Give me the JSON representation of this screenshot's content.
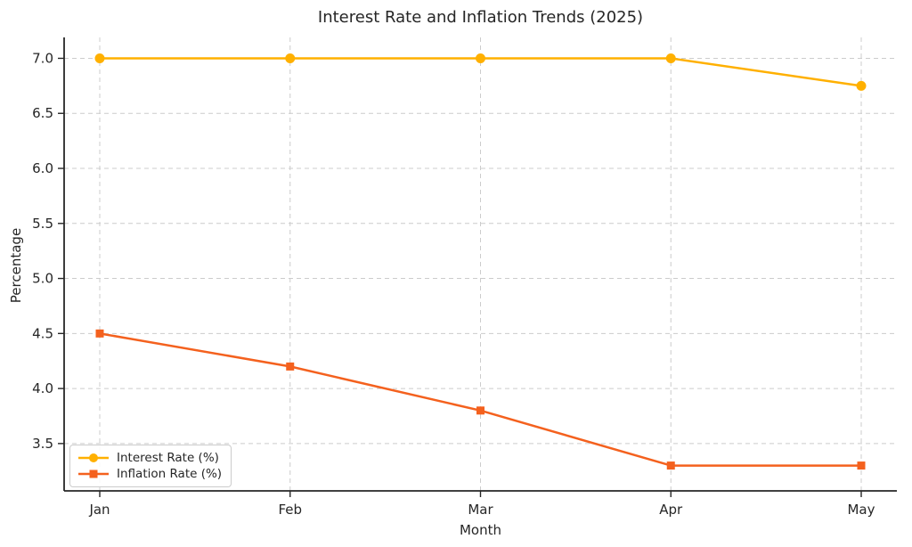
{
  "chart_data": {
    "type": "line",
    "title": "Interest Rate and Inflation Trends (2025)",
    "xlabel": "Month",
    "ylabel": "Percentage",
    "categories": [
      "Jan",
      "Feb",
      "Mar",
      "Apr",
      "May"
    ],
    "series": [
      {
        "name": "Interest Rate (%)",
        "color": "#FFB000",
        "marker": "circle",
        "values": [
          7.0,
          7.0,
          7.0,
          7.0,
          6.75
        ]
      },
      {
        "name": "Inflation Rate (%)",
        "color": "#F4611E",
        "marker": "square",
        "values": [
          4.5,
          4.2,
          3.8,
          3.3,
          3.3
        ]
      }
    ],
    "yticks": [
      3.5,
      4.0,
      4.5,
      5.0,
      5.5,
      6.0,
      6.5,
      7.0
    ],
    "ylim": [
      3.07,
      7.19
    ],
    "grid": true,
    "grid_style": "dashed",
    "legend_position": "lower-left",
    "colors": {
      "grid": "#cccccc",
      "axis": "#262626",
      "text": "#262626",
      "background": "#ffffff"
    }
  }
}
